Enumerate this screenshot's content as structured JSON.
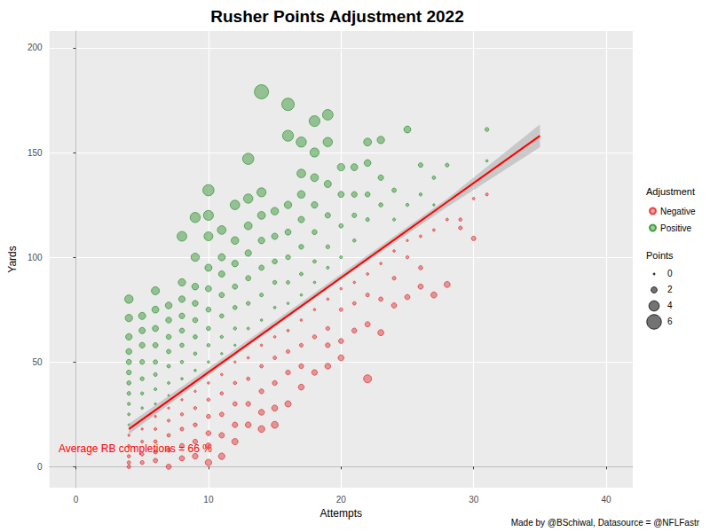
{
  "chart_data": {
    "type": "scatter",
    "title": "Rusher Points Adjustment 2022",
    "x_label": "Attempts",
    "y_label": "Yards",
    "annotation": "Average RB completions = 66 %",
    "caption": "Made by @BSchiwal, Datasource = @NFLFastr",
    "xlim": [
      -2,
      42
    ],
    "xticks": [
      0,
      10,
      20,
      30,
      40
    ],
    "ylim": [
      -10,
      208
    ],
    "yticks": [
      0,
      50,
      100,
      150,
      200
    ],
    "grid": true,
    "legend": "right",
    "legend_title": "Adjustment",
    "size_legend": {
      "title": "Points",
      "values": [
        0,
        2,
        4,
        6
      ]
    },
    "series": [
      {
        "name": "Negative",
        "color": "#dd2222",
        "marker": "circle",
        "values": [
          [
            4,
            15,
            0.2
          ],
          [
            4,
            10,
            0.4
          ],
          [
            4,
            5,
            0.7
          ],
          [
            4,
            2,
            0.8
          ],
          [
            4,
            0,
            0.9
          ],
          [
            5,
            18,
            0.2
          ],
          [
            5,
            12,
            0.5
          ],
          [
            5,
            6,
            0.8
          ],
          [
            5,
            2,
            1.0
          ],
          [
            6,
            24,
            0.2
          ],
          [
            6,
            18,
            0.5
          ],
          [
            6,
            12,
            0.8
          ],
          [
            6,
            7,
            1.0
          ],
          [
            6,
            3,
            1.2
          ],
          [
            7,
            28,
            0.2
          ],
          [
            7,
            22,
            0.5
          ],
          [
            7,
            15,
            0.8
          ],
          [
            7,
            8,
            1.2
          ],
          [
            7,
            0,
            1.6
          ],
          [
            8,
            32,
            0.2
          ],
          [
            8,
            25,
            0.6
          ],
          [
            8,
            18,
            0.9
          ],
          [
            8,
            10,
            1.3
          ],
          [
            8,
            4,
            1.6
          ],
          [
            9,
            36,
            0.2
          ],
          [
            9,
            28,
            0.6
          ],
          [
            9,
            20,
            1.0
          ],
          [
            9,
            12,
            1.4
          ],
          [
            9,
            5,
            1.8
          ],
          [
            10,
            40,
            0.3
          ],
          [
            10,
            32,
            0.7
          ],
          [
            10,
            24,
            1.1
          ],
          [
            10,
            16,
            1.5
          ],
          [
            10,
            10,
            1.8
          ],
          [
            10,
            2,
            2.2
          ],
          [
            11,
            44,
            0.3
          ],
          [
            11,
            35,
            0.7
          ],
          [
            11,
            25,
            1.2
          ],
          [
            11,
            15,
            1.7
          ],
          [
            11,
            5,
            2.2
          ],
          [
            12,
            50,
            0.2
          ],
          [
            12,
            40,
            0.7
          ],
          [
            12,
            30,
            1.2
          ],
          [
            12,
            20,
            1.7
          ],
          [
            12,
            12,
            2.1
          ],
          [
            13,
            52,
            0.3
          ],
          [
            13,
            42,
            0.8
          ],
          [
            13,
            30,
            1.4
          ],
          [
            13,
            20,
            1.9
          ],
          [
            14,
            58,
            0.3
          ],
          [
            14,
            48,
            0.8
          ],
          [
            14,
            36,
            1.4
          ],
          [
            14,
            26,
            1.9
          ],
          [
            14,
            18,
            2.3
          ],
          [
            15,
            62,
            0.3
          ],
          [
            15,
            52,
            0.8
          ],
          [
            15,
            40,
            1.4
          ],
          [
            15,
            28,
            2.0
          ],
          [
            15,
            20,
            2.4
          ],
          [
            16,
            65,
            0.4
          ],
          [
            16,
            55,
            0.9
          ],
          [
            16,
            45,
            1.4
          ],
          [
            16,
            30,
            2.1
          ],
          [
            17,
            70,
            0.3
          ],
          [
            17,
            58,
            0.9
          ],
          [
            17,
            48,
            1.4
          ],
          [
            17,
            38,
            1.9
          ],
          [
            18,
            75,
            0.3
          ],
          [
            18,
            62,
            1.0
          ],
          [
            18,
            45,
            1.8
          ],
          [
            19,
            80,
            0.3
          ],
          [
            19,
            66,
            1.0
          ],
          [
            19,
            58,
            1.4
          ],
          [
            19,
            48,
            1.9
          ],
          [
            20,
            85,
            0.3
          ],
          [
            20,
            75,
            0.8
          ],
          [
            20,
            60,
            1.5
          ],
          [
            20,
            52,
            1.9
          ],
          [
            21,
            88,
            0.3
          ],
          [
            21,
            78,
            0.8
          ],
          [
            21,
            65,
            1.5
          ],
          [
            22,
            92,
            0.4
          ],
          [
            22,
            82,
            0.9
          ],
          [
            22,
            68,
            1.6
          ],
          [
            22,
            42,
            2.9
          ],
          [
            23,
            97,
            0.3
          ],
          [
            23,
            80,
            1.2
          ],
          [
            23,
            64,
            2.0
          ],
          [
            24,
            103,
            0.3
          ],
          [
            24,
            90,
            0.9
          ],
          [
            24,
            77,
            1.6
          ],
          [
            25,
            108,
            0.2
          ],
          [
            25,
            100,
            0.6
          ],
          [
            25,
            81,
            1.6
          ],
          [
            26,
            110,
            0.4
          ],
          [
            26,
            95,
            1.1
          ],
          [
            26,
            86,
            1.6
          ],
          [
            27,
            113,
            0.4
          ],
          [
            27,
            82,
            2.0
          ],
          [
            28,
            118,
            0.4
          ],
          [
            28,
            87,
            2.0
          ],
          [
            29,
            114,
            0.9
          ],
          [
            29,
            118,
            0.7
          ],
          [
            30,
            109,
            1.3
          ],
          [
            30,
            128,
            0.4
          ],
          [
            31,
            130,
            0.5
          ]
        ]
      },
      {
        "name": "Positive",
        "color": "#228b22",
        "marker": "circle",
        "values": [
          [
            4,
            80,
            3.1
          ],
          [
            4,
            71,
            2.6
          ],
          [
            4,
            62,
            2.2
          ],
          [
            4,
            55,
            1.9
          ],
          [
            4,
            50,
            1.6
          ],
          [
            4,
            45,
            1.4
          ],
          [
            4,
            40,
            1.1
          ],
          [
            4,
            35,
            0.9
          ],
          [
            4,
            30,
            0.6
          ],
          [
            4,
            25,
            0.4
          ],
          [
            4,
            20,
            0.1
          ],
          [
            5,
            72,
            2.5
          ],
          [
            5,
            65,
            2.1
          ],
          [
            5,
            58,
            1.8
          ],
          [
            5,
            50,
            1.4
          ],
          [
            5,
            42,
            1.0
          ],
          [
            5,
            35,
            0.6
          ],
          [
            5,
            28,
            0.3
          ],
          [
            6,
            84,
            2.9
          ],
          [
            6,
            75,
            2.4
          ],
          [
            6,
            66,
            2.0
          ],
          [
            6,
            58,
            1.6
          ],
          [
            6,
            50,
            1.2
          ],
          [
            6,
            44,
            0.9
          ],
          [
            6,
            37,
            0.5
          ],
          [
            6,
            30,
            0.2
          ],
          [
            7,
            77,
            2.3
          ],
          [
            7,
            70,
            1.9
          ],
          [
            7,
            62,
            1.5
          ],
          [
            7,
            55,
            1.2
          ],
          [
            7,
            48,
            0.8
          ],
          [
            7,
            40,
            0.4
          ],
          [
            7,
            34,
            0.1
          ],
          [
            8,
            110,
            3.7
          ],
          [
            8,
            88,
            2.6
          ],
          [
            8,
            80,
            2.2
          ],
          [
            8,
            72,
            1.8
          ],
          [
            8,
            65,
            1.5
          ],
          [
            8,
            58,
            1.1
          ],
          [
            8,
            50,
            0.7
          ],
          [
            8,
            42,
            0.3
          ],
          [
            9,
            119,
            3.9
          ],
          [
            9,
            100,
            3.0
          ],
          [
            9,
            86,
            2.3
          ],
          [
            9,
            78,
            1.9
          ],
          [
            9,
            70,
            1.5
          ],
          [
            9,
            62,
            1.1
          ],
          [
            9,
            54,
            0.7
          ],
          [
            9,
            46,
            0.3
          ],
          [
            10,
            132,
            4.4
          ],
          [
            10,
            120,
            3.8
          ],
          [
            10,
            110,
            3.3
          ],
          [
            10,
            95,
            2.5
          ],
          [
            10,
            85,
            2.0
          ],
          [
            10,
            75,
            1.5
          ],
          [
            10,
            66,
            1.1
          ],
          [
            10,
            58,
            0.7
          ],
          [
            10,
            50,
            0.3
          ],
          [
            11,
            113,
            3.2
          ],
          [
            11,
            100,
            2.5
          ],
          [
            11,
            92,
            2.1
          ],
          [
            11,
            82,
            1.6
          ],
          [
            11,
            72,
            1.1
          ],
          [
            11,
            62,
            0.6
          ],
          [
            11,
            54,
            0.2
          ],
          [
            12,
            125,
            3.6
          ],
          [
            12,
            108,
            2.7
          ],
          [
            12,
            97,
            2.2
          ],
          [
            12,
            86,
            1.6
          ],
          [
            12,
            76,
            1.1
          ],
          [
            12,
            66,
            0.6
          ],
          [
            12,
            58,
            0.2
          ],
          [
            13,
            147,
            4.4
          ],
          [
            13,
            128,
            3.5
          ],
          [
            13,
            115,
            2.8
          ],
          [
            13,
            102,
            2.2
          ],
          [
            13,
            90,
            1.6
          ],
          [
            13,
            78,
            1.0
          ],
          [
            13,
            66,
            0.4
          ],
          [
            14,
            179,
            5.8
          ],
          [
            14,
            131,
            3.4
          ],
          [
            14,
            120,
            2.8
          ],
          [
            14,
            108,
            2.2
          ],
          [
            14,
            95,
            1.6
          ],
          [
            14,
            82,
            0.9
          ],
          [
            14,
            70,
            0.3
          ],
          [
            15,
            122,
            2.7
          ],
          [
            15,
            110,
            2.1
          ],
          [
            15,
            98,
            1.5
          ],
          [
            15,
            88,
            1.0
          ],
          [
            15,
            76,
            0.4
          ],
          [
            16,
            173,
            5.0
          ],
          [
            16,
            158,
            4.3
          ],
          [
            16,
            125,
            2.6
          ],
          [
            16,
            112,
            2.0
          ],
          [
            16,
            100,
            1.4
          ],
          [
            16,
            88,
            0.8
          ],
          [
            16,
            78,
            0.3
          ],
          [
            17,
            155,
            3.9
          ],
          [
            17,
            140,
            3.2
          ],
          [
            17,
            130,
            2.7
          ],
          [
            17,
            118,
            2.1
          ],
          [
            17,
            105,
            1.4
          ],
          [
            17,
            92,
            0.8
          ],
          [
            17,
            82,
            0.3
          ],
          [
            18,
            165,
            4.2
          ],
          [
            18,
            150,
            3.4
          ],
          [
            18,
            138,
            2.8
          ],
          [
            18,
            125,
            2.2
          ],
          [
            18,
            112,
            1.5
          ],
          [
            18,
            98,
            0.8
          ],
          [
            18,
            88,
            0.3
          ],
          [
            19,
            168,
            4.1
          ],
          [
            19,
            155,
            3.5
          ],
          [
            19,
            135,
            2.5
          ],
          [
            19,
            120,
            1.7
          ],
          [
            19,
            105,
            1.0
          ],
          [
            19,
            95,
            0.5
          ],
          [
            20,
            143,
            2.6
          ],
          [
            20,
            130,
            2.0
          ],
          [
            20,
            115,
            1.2
          ],
          [
            20,
            100,
            0.5
          ],
          [
            21,
            143,
            2.4
          ],
          [
            21,
            130,
            1.8
          ],
          [
            21,
            120,
            1.3
          ],
          [
            21,
            108,
            0.7
          ],
          [
            22,
            155,
            2.8
          ],
          [
            22,
            145,
            2.3
          ],
          [
            22,
            130,
            1.5
          ],
          [
            22,
            118,
            0.9
          ],
          [
            23,
            156,
            2.6
          ],
          [
            23,
            138,
            1.7
          ],
          [
            23,
            125,
            1.1
          ],
          [
            24,
            132,
            1.2
          ],
          [
            24,
            118,
            0.5
          ],
          [
            25,
            161,
            2.4
          ],
          [
            25,
            125,
            0.6
          ],
          [
            26,
            144,
            1.3
          ],
          [
            26,
            130,
            0.6
          ],
          [
            27,
            138,
            0.8
          ],
          [
            27,
            125,
            0.2
          ],
          [
            28,
            144,
            0.9
          ],
          [
            31,
            161,
            1.0
          ],
          [
            31,
            146,
            0.3
          ]
        ]
      }
    ],
    "trend": {
      "type": "line",
      "color": "#ff0000",
      "line_style": "solid",
      "x": [
        4,
        35
      ],
      "y": [
        18,
        158
      ]
    },
    "band": {
      "color": "#b0b0b0",
      "x": [
        4,
        12,
        20,
        28,
        35
      ],
      "lower": [
        15.5,
        53,
        89.5,
        124,
        152.5
      ],
      "upper": [
        20.5,
        56,
        92,
        128,
        163.5
      ]
    }
  }
}
